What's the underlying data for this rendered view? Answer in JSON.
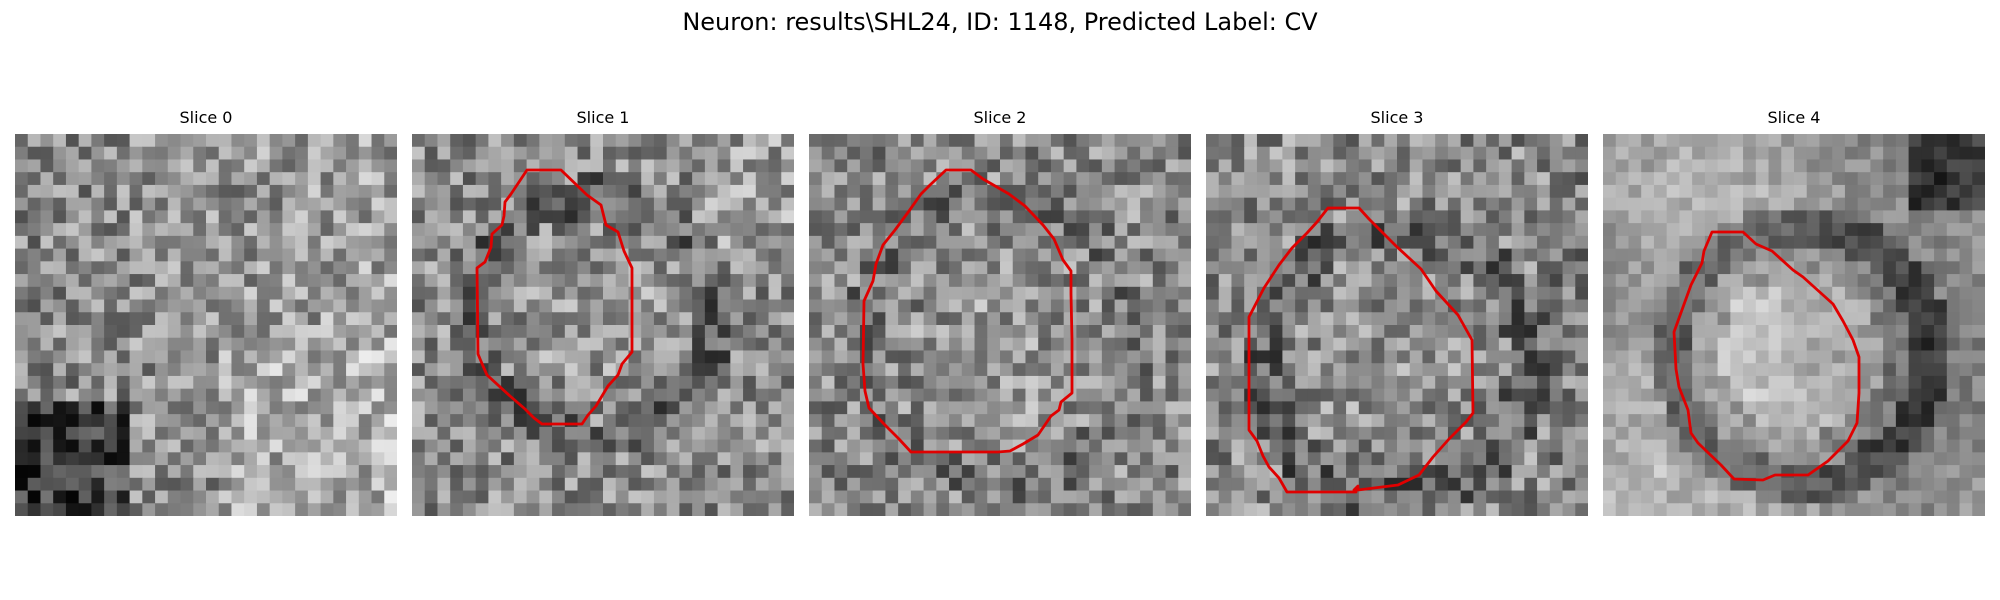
{
  "figure": {
    "title": "Neuron: results\\SHL24, ID: 1148, Predicted Label: CV"
  },
  "panels": [
    {
      "title": "Slice 0",
      "has_contour": false,
      "seed": 7,
      "style": "slice0"
    },
    {
      "title": "Slice 1",
      "has_contour": true,
      "seed": 13,
      "style": "ring"
    },
    {
      "title": "Slice 2",
      "has_contour": true,
      "seed": 21,
      "style": "ring-soft"
    },
    {
      "title": "Slice 3",
      "has_contour": true,
      "seed": 34,
      "style": "ring-dark"
    },
    {
      "title": "Slice 4",
      "has_contour": true,
      "seed": 55,
      "style": "smooth-ring"
    }
  ],
  "colors": {
    "contour": "#e00000"
  },
  "icons": []
}
